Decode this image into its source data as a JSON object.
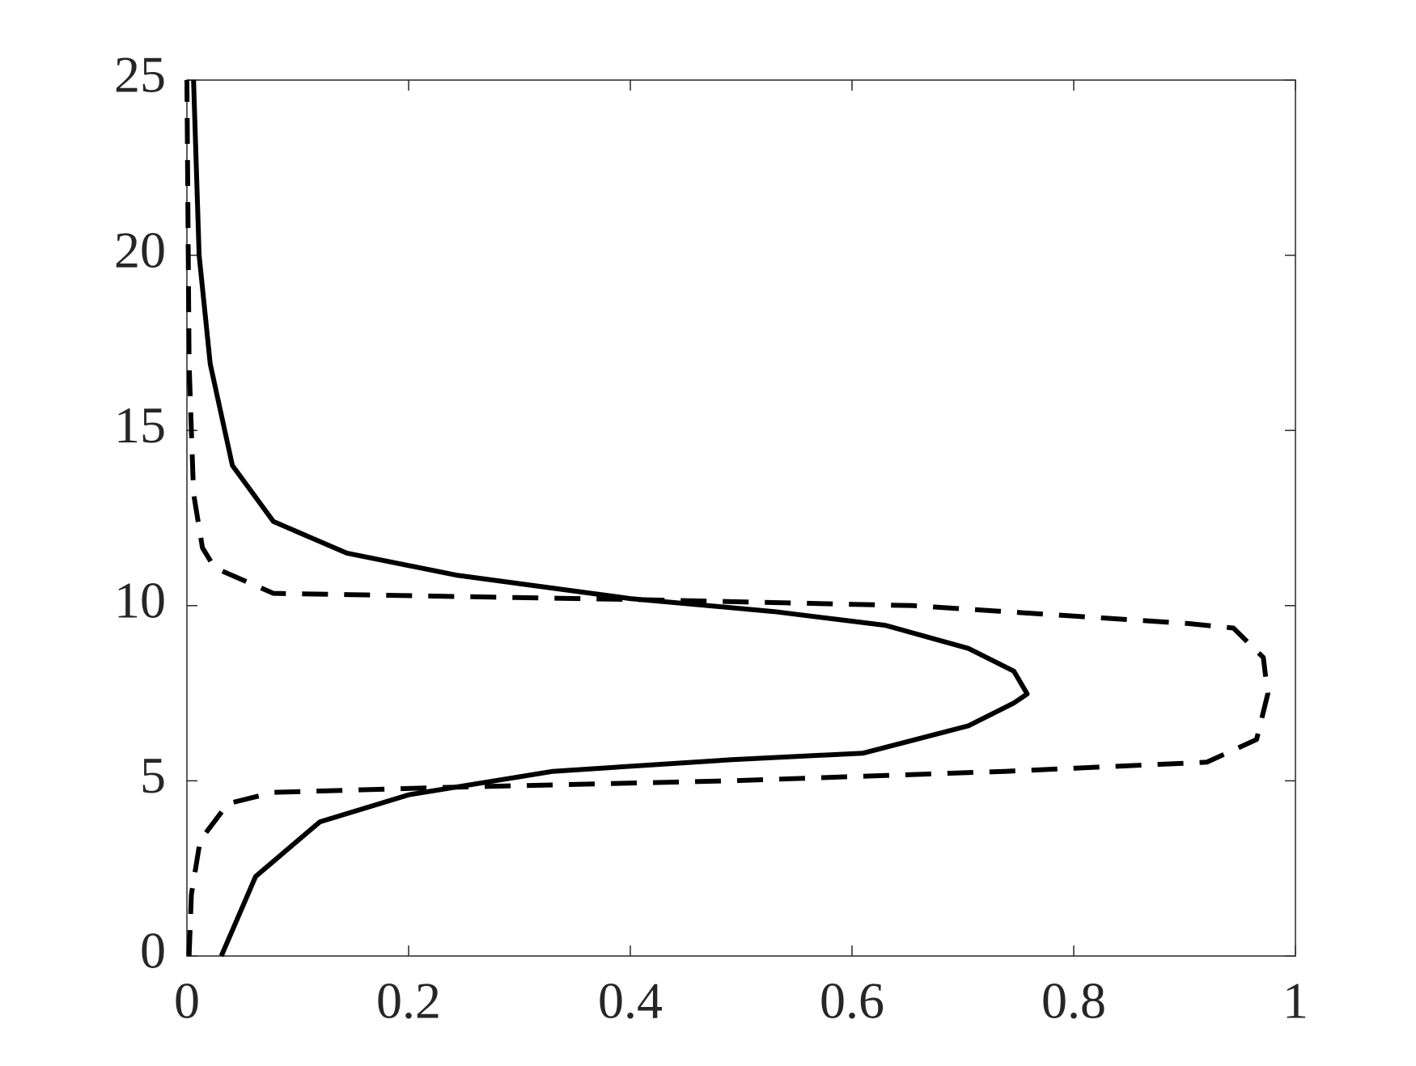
{
  "chart_data": {
    "type": "line",
    "xlim": [
      0,
      1
    ],
    "xticks": [
      0,
      0.2,
      0.4,
      0.6,
      0.8,
      1
    ],
    "ylim": [
      0,
      25
    ],
    "yticks": [
      0,
      5,
      10,
      15,
      20,
      25
    ],
    "grid": false,
    "series": [
      {
        "color": "#000000",
        "dashed": false,
        "x": [
          0.031,
          0.062,
          0.12,
          0.2,
          0.33,
          0.49,
          0.61,
          0.705,
          0.746,
          0.758,
          0.746,
          0.705,
          0.63,
          0.53,
          0.4,
          0.243,
          0.144,
          0.078,
          0.041,
          0.021,
          0.011,
          0.006
        ],
        "y": [
          0,
          2.27,
          3.83,
          4.6,
          5.27,
          5.6,
          5.79,
          6.57,
          7.22,
          7.48,
          8.13,
          8.78,
          9.44,
          9.83,
          10.2,
          10.87,
          11.5,
          12.4,
          14.0,
          16.9,
          20.0,
          25
        ]
      },
      {
        "color": "#000000",
        "dashed": true,
        "x": [
          0.002,
          0.004,
          0.012,
          0.037,
          0.078,
          0.243,
          0.49,
          0.738,
          0.92,
          0.965,
          0.975,
          0.971,
          0.944,
          0.903,
          0.655,
          0.408,
          0.078,
          0.025,
          0.014,
          0.006,
          0.002,
          0
        ],
        "y": [
          0,
          1.75,
          3.3,
          4.35,
          4.67,
          4.82,
          5.0,
          5.27,
          5.53,
          6.18,
          7.48,
          8.52,
          9.36,
          9.49,
          10.0,
          10.17,
          10.35,
          11.08,
          11.65,
          13.2,
          16.9,
          25
        ]
      }
    ]
  }
}
